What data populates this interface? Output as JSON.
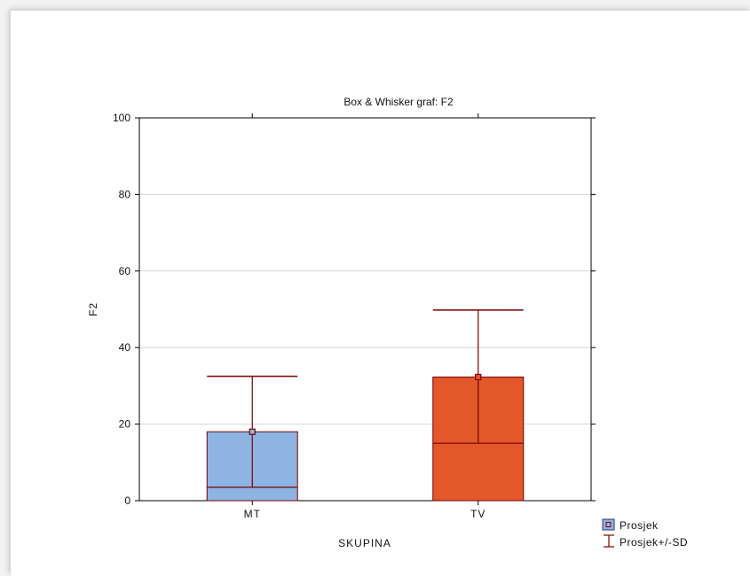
{
  "chart_data": {
    "type": "box",
    "title": "Box & Whisker graf:  F2",
    "xlabel": "SKUPINA",
    "ylabel": "F2",
    "ylim": [
      0,
      100
    ],
    "yticks": [
      "0",
      "20",
      "40",
      "60",
      "80",
      "100"
    ],
    "grid": true,
    "categories": [
      "MT",
      "TV"
    ],
    "series": [
      {
        "category": "MT",
        "low": 3.5,
        "mean": 18,
        "high": 32.5,
        "color": "#8db4e2"
      },
      {
        "category": "TV",
        "low": 15,
        "mean": 32.3,
        "high": 49.8,
        "color": "#e2582a"
      }
    ],
    "legend": {
      "position": "bottom-right",
      "items": [
        {
          "label": "Prosjek",
          "marker": "mean-square"
        },
        {
          "label": "Prosjek+/-SD",
          "marker": "whisker"
        }
      ]
    },
    "colors": {
      "stroke": "#7a0000",
      "grid": "#d6d6d6"
    }
  }
}
